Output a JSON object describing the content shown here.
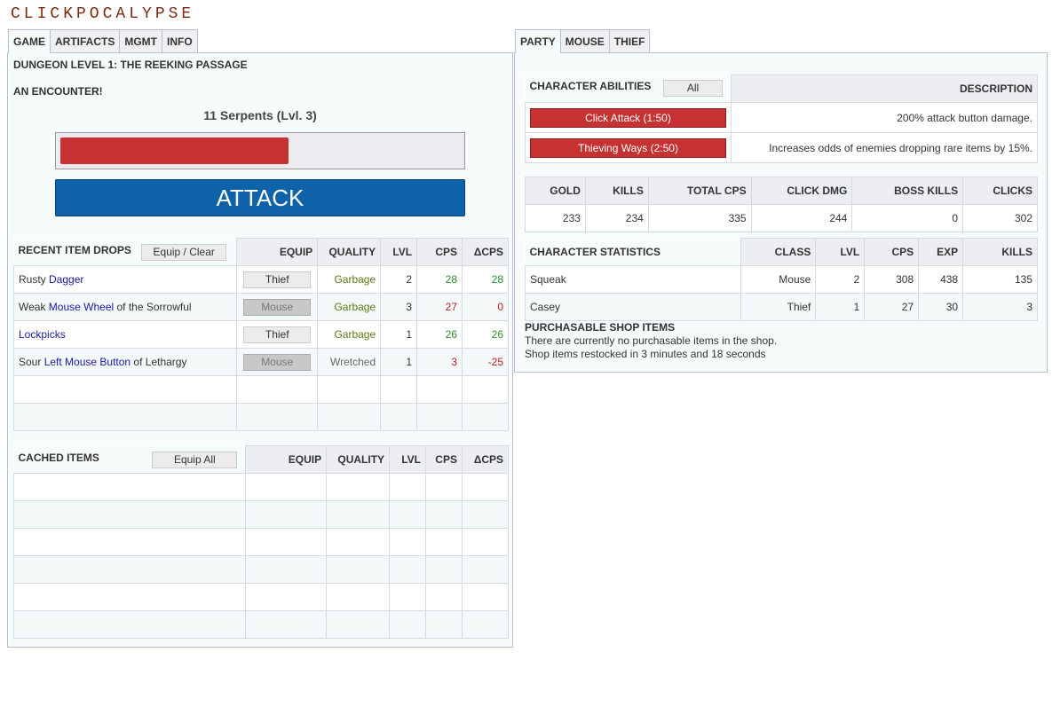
{
  "app_title": "CLICKPOCALYPSE",
  "left_tabs": [
    "GAME",
    "ARTIFACTS",
    "MGMT",
    "INFO"
  ],
  "right_tabs": [
    "PARTY",
    "MOUSE",
    "THIEF"
  ],
  "game": {
    "dungeon": "DUNGEON LEVEL 1: THE REEKING PASSAGE",
    "encounter": "AN ENCOUNTER!",
    "monster": "11 Serpents (Lvl. 3)",
    "monster_hp_fraction": 0.57,
    "attack_label": "ATTACK",
    "colors": {
      "hp": "#c63131",
      "attack": "#0d62a9"
    }
  },
  "recent_drops": {
    "title": "RECENT ITEM DROPS",
    "button": "Equip / Clear",
    "headers": [
      "EQUIP",
      "QUALITY",
      "LVL",
      "CPS",
      "ΔCPS"
    ],
    "rows": [
      {
        "prefix": "Rusty ",
        "item": "Dagger",
        "suffix": "",
        "equip": "Thief",
        "disabled": false,
        "quality": "Garbage",
        "lvl": "2",
        "cps": "28",
        "dcps": "28",
        "cps_color": "green",
        "dcps_color": "green",
        "q_color": "olive"
      },
      {
        "prefix": "Weak ",
        "item": "Mouse Wheel",
        "suffix": " of the Sorrowful",
        "equip": "Mouse",
        "disabled": true,
        "quality": "Garbage",
        "lvl": "3",
        "cps": "27",
        "dcps": "0",
        "cps_color": "red",
        "dcps_color": "red",
        "q_color": "olive"
      },
      {
        "prefix": "",
        "item": "Lockpicks",
        "suffix": "",
        "equip": "Thief",
        "disabled": false,
        "quality": "Garbage",
        "lvl": "1",
        "cps": "26",
        "dcps": "26",
        "cps_color": "green",
        "dcps_color": "green",
        "q_color": "olive"
      },
      {
        "prefix": "Sour ",
        "item": "Left Mouse Button",
        "suffix": " of Lethargy",
        "equip": "Mouse",
        "disabled": true,
        "quality": "Wretched",
        "lvl": "1",
        "cps": "3",
        "dcps": "-25",
        "cps_color": "red",
        "dcps_color": "red",
        "q_color": "gray"
      }
    ]
  },
  "cached": {
    "title": "CACHED ITEMS",
    "button": "Equip All",
    "headers": [
      "EQUIP",
      "QUALITY",
      "LVL",
      "CPS",
      "ΔCPS"
    ]
  },
  "abilities": {
    "title": "CHARACTER ABILITIES",
    "button": "All",
    "desc_header": "DESCRIPTION",
    "rows": [
      {
        "label": "Click Attack (1:50)",
        "desc": "200% attack button damage."
      },
      {
        "label": "Thieving Ways (2:50)",
        "desc": "Increases odds of enemies dropping rare items by 15%."
      }
    ]
  },
  "stats": {
    "headers": [
      "GOLD",
      "KILLS",
      "TOTAL CPS",
      "CLICK DMG",
      "BOSS KILLS",
      "CLICKS"
    ],
    "values": [
      "233",
      "234",
      "335",
      "244",
      "0",
      "302"
    ]
  },
  "characters": {
    "title": "CHARACTER STATISTICS",
    "headers": [
      "CLASS",
      "LVL",
      "CPS",
      "EXP",
      "KILLS"
    ],
    "rows": [
      {
        "name": "Squeak",
        "class": "Mouse",
        "lvl": "2",
        "cps": "308",
        "exp": "438",
        "kills": "135"
      },
      {
        "name": "Casey",
        "class": "Thief",
        "lvl": "1",
        "cps": "27",
        "exp": "30",
        "kills": "3"
      }
    ]
  },
  "shop": {
    "title": "PURCHASABLE SHOP ITEMS",
    "line1": "There are currently no purchasable items in the shop.",
    "line2": "Shop items restocked in 3 minutes and 18 seconds"
  }
}
